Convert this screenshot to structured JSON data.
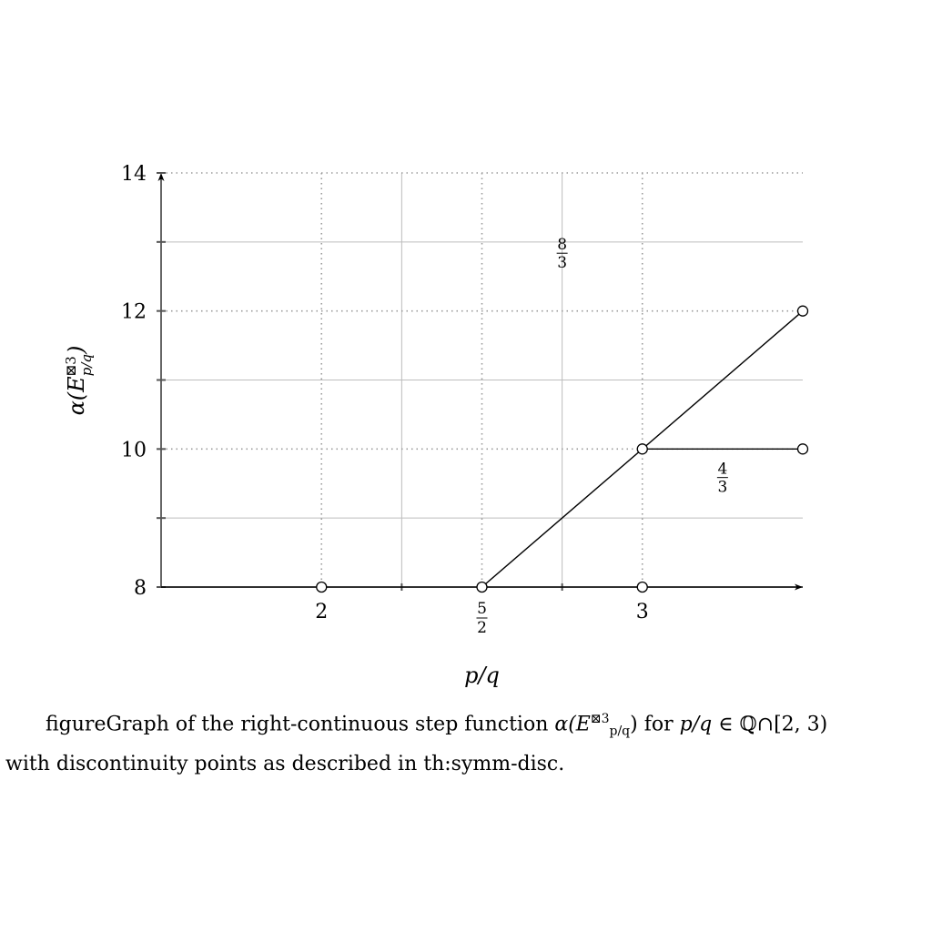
{
  "chart_data": {
    "type": "line",
    "x_axis": {
      "label": "p/q",
      "label_parts": {
        "base": "p",
        "slash": "/",
        "den": "q"
      },
      "ticks": [
        {
          "value": 2,
          "label": "2"
        },
        {
          "value": 2.5,
          "frac": {
            "num": "5",
            "den": "2"
          }
        },
        {
          "value": 3,
          "label": "3"
        }
      ],
      "lim": [
        1.5,
        3.5
      ],
      "minor_ticks": [
        2.25,
        2.75
      ]
    },
    "y_axis": {
      "label_parts": {
        "prefix": "α(E",
        "sup": "⊠3",
        "sub": "p/q",
        "suffix": ")"
      },
      "ticks": [
        {
          "value": 8,
          "label": "8"
        },
        {
          "value": 10,
          "label": "10"
        },
        {
          "value": 12,
          "label": "12"
        },
        {
          "value": 14,
          "label": "14"
        }
      ],
      "lim": [
        8,
        14
      ],
      "minor_ticks": [
        9,
        11,
        13
      ]
    },
    "grid": true,
    "series": [
      {
        "points": [
          [
            2.5,
            8
          ],
          [
            3.5,
            12
          ]
        ]
      },
      {
        "points": [
          [
            3,
            10
          ],
          [
            3.5,
            10
          ]
        ]
      },
      {
        "points": [
          [
            1.5,
            8
          ],
          [
            3.5,
            8
          ]
        ]
      }
    ],
    "open_markers": [
      [
        2,
        8
      ],
      [
        2.5,
        8
      ],
      [
        3,
        8
      ],
      [
        3,
        10
      ],
      [
        3.5,
        10
      ],
      [
        3.5,
        12
      ]
    ],
    "slope_labels": [
      {
        "x": 2.75,
        "y": 12.85,
        "num": "8",
        "den": "3"
      },
      {
        "x": 3.25,
        "y": 9.6,
        "num": "4",
        "den": "3"
      }
    ]
  },
  "caption": {
    "line1_prefix": "figureGraph of the right-continuous step function ",
    "math_alpha": "α(E",
    "math_sup": "⊠3",
    "math_sub": "p/q",
    "math_close": ")",
    "line1_mid": " for ",
    "math_pq": "p/q",
    "line1_suffix": " ∈ ℚ∩[2, 3)",
    "line2": "with discontinuity points as described in th:symm-disc."
  }
}
